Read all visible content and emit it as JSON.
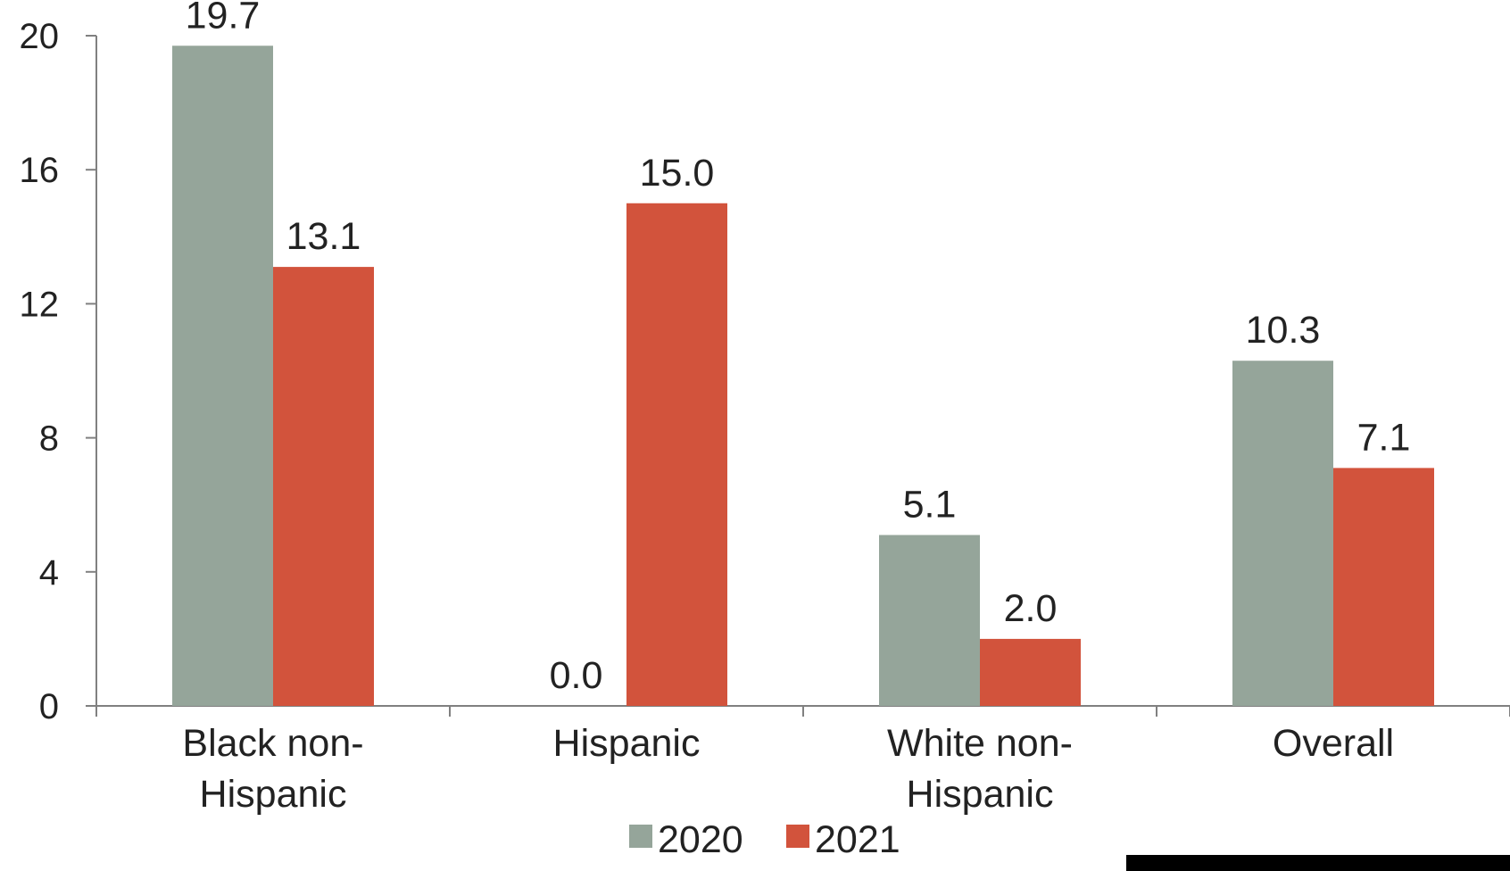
{
  "chart_data": {
    "type": "bar",
    "title": "",
    "xlabel": "",
    "ylabel": "",
    "ylim": [
      0,
      20
    ],
    "yticks": [
      0,
      4,
      8,
      12,
      16,
      20
    ],
    "grid": false,
    "legend_position": "bottom",
    "categories": [
      [
        "Black non-",
        "Hispanic"
      ],
      [
        "Hispanic"
      ],
      [
        "White non-",
        "Hispanic"
      ],
      [
        "Overall"
      ]
    ],
    "series": [
      {
        "name": "2020",
        "color": "#95a59a",
        "values": [
          19.7,
          0.0,
          5.1,
          10.3
        ],
        "labels": [
          "19.7",
          "0.0",
          "5.1",
          "10.3"
        ]
      },
      {
        "name": "2021",
        "color": "#d2533c",
        "values": [
          13.1,
          15.0,
          2.0,
          7.1
        ],
        "labels": [
          "13.1",
          "15.0",
          "2.0",
          "7.1"
        ]
      }
    ]
  }
}
